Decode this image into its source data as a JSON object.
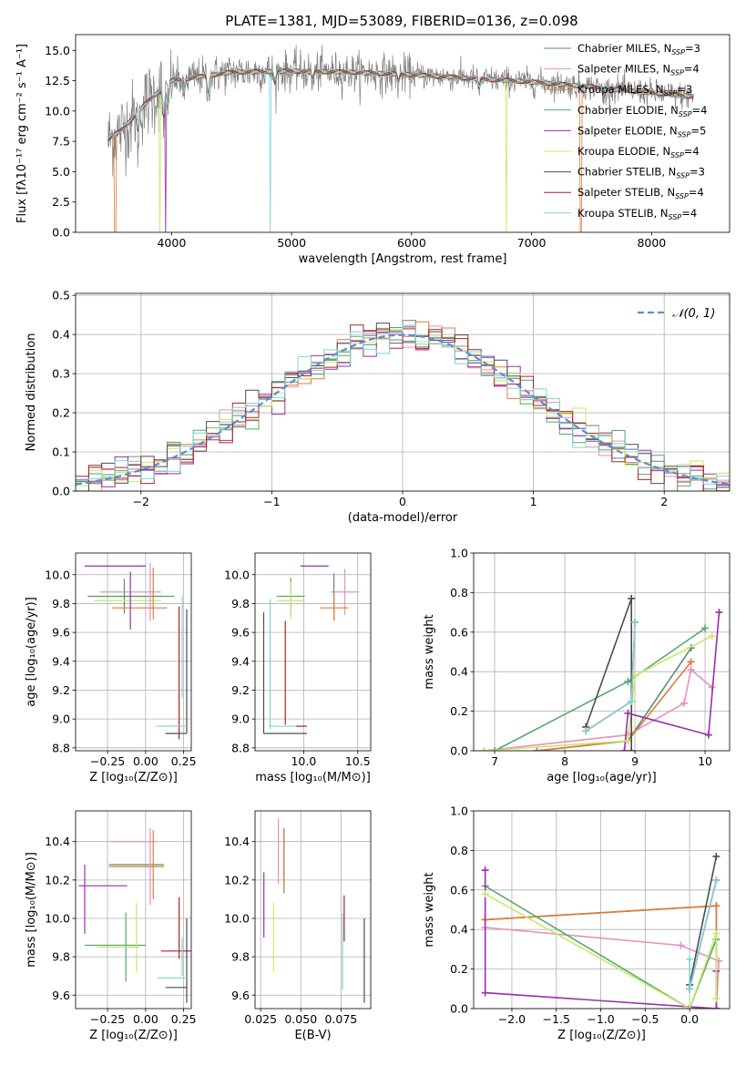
{
  "figure_title": "PLATE=1381, MJD=53089, FIBERID=0136, z=0.098",
  "colors": {
    "Chabrier MILES": "#5b8f6c",
    "Salpeter MILES": "#e88fbf",
    "Kroupa MILES": "#e07b39",
    "Chabrier ELODIE": "#55aa66",
    "Salpeter ELODIE": "#9a2fae",
    "Kroupa ELODIE": "#c8e86a",
    "Chabrier STELIB": "#4d4d4d",
    "Salpeter STELIB": "#b22222",
    "Kroupa STELIB": "#7fd4d8",
    "normal": "#5b8bd6",
    "observed": "#808080"
  },
  "chart_data": [
    {
      "id": "spectrum",
      "type": "line",
      "title": "PLATE=1381, MJD=53089, FIBERID=0136, z=0.098",
      "xlabel": "wavelength [Angstrom, rest frame]",
      "ylabel": "Flux [fλ10⁻¹⁷ erg cm⁻² s⁻¹ A⁻¹]",
      "xlim": [
        3200,
        8650
      ],
      "ylim": [
        0,
        16.3
      ],
      "xticks": [
        4000,
        5000,
        6000,
        7000,
        8000
      ],
      "yticks": [
        0.0,
        2.5,
        5.0,
        7.5,
        10.0,
        12.5,
        15.0
      ],
      "continuum": [
        [
          3470,
          7.6
        ],
        [
          3600,
          8.6
        ],
        [
          3800,
          10.8
        ],
        [
          4000,
          12.5
        ],
        [
          4500,
          13.2
        ],
        [
          5000,
          13.3
        ],
        [
          5500,
          13.2
        ],
        [
          6000,
          13.0
        ],
        [
          6500,
          12.7
        ],
        [
          7000,
          12.4
        ],
        [
          7500,
          12.0
        ],
        [
          8000,
          11.5
        ],
        [
          8350,
          11.2
        ]
      ],
      "features": [
        [
          3720,
          -2.0
        ],
        [
          3934,
          -3.0
        ],
        [
          3968,
          -2.5
        ],
        [
          4101,
          -1.5
        ],
        [
          4304,
          -2.0
        ],
        [
          4861,
          -1.2
        ],
        [
          5175,
          -1.0
        ],
        [
          5890,
          -0.8
        ],
        [
          6563,
          -0.9
        ],
        [
          7600,
          -0.8
        ]
      ],
      "model_dropouts": [
        {
          "series": "Kroupa MILES",
          "x": 3530
        },
        {
          "series": "Kroupa MILES",
          "x": 7410
        },
        {
          "series": "Kroupa ELODIE",
          "x": 3905
        },
        {
          "series": "Kroupa ELODIE",
          "x": 6790
        },
        {
          "series": "Kroupa STELIB",
          "x": 4820
        },
        {
          "series": "Salpeter ELODIE",
          "x": 3950
        }
      ],
      "legend": [
        {
          "series": "Chabrier MILES",
          "label": "Chabrier MILES, N",
          "sub": "SSP",
          "suffix": "=3"
        },
        {
          "series": "Salpeter MILES",
          "label": "Salpeter MILES, N",
          "sub": "SSP",
          "suffix": "=4"
        },
        {
          "series": "Kroupa MILES",
          "label": "Kroupa MILES, N",
          "sub": "SSP",
          "suffix": "=3"
        },
        {
          "series": "Chabrier ELODIE",
          "label": "Chabrier ELODIE, N",
          "sub": "SSP",
          "suffix": "=4"
        },
        {
          "series": "Salpeter ELODIE",
          "label": "Salpeter ELODIE, N",
          "sub": "SSP",
          "suffix": "=5"
        },
        {
          "series": "Kroupa ELODIE",
          "label": "Kroupa ELODIE, N",
          "sub": "SSP",
          "suffix": "=4"
        },
        {
          "series": "Chabrier STELIB",
          "label": "Chabrier STELIB, N",
          "sub": "SSP",
          "suffix": "=3"
        },
        {
          "series": "Salpeter STELIB",
          "label": "Salpeter STELIB, N",
          "sub": "SSP",
          "suffix": "=4"
        },
        {
          "series": "Kroupa STELIB",
          "label": "Kroupa STELIB, N",
          "sub": "SSP",
          "suffix": "=4"
        }
      ],
      "legend_placement": "top-right"
    },
    {
      "id": "residuals",
      "type": "line",
      "xlabel": "(data-model)/error",
      "ylabel": "Normed distribution",
      "xlim": [
        -2.5,
        2.5
      ],
      "ylim": [
        0,
        0.505
      ],
      "xticks": [
        -2,
        -1,
        0,
        1,
        2
      ],
      "xtick_labels": [
        "−2",
        "−1",
        "0",
        "1",
        "2"
      ],
      "yticks": [
        0.0,
        0.1,
        0.2,
        0.3,
        0.4,
        0.5
      ],
      "grid": true,
      "bin_width": 0.1,
      "normal_legend": "𝒩(0, 1)",
      "legend_placement": "top-right"
    },
    {
      "id": "age-vs-Z",
      "type": "scatter",
      "xlabel": "Z [log₁₀(Z/Z⊙)]",
      "ylabel": "age  [log₁₀(age/yr)]",
      "xlim": [
        -0.46,
        0.3
      ],
      "ylim": [
        8.78,
        10.15
      ],
      "xticks": [
        -0.25,
        0.0,
        0.25
      ],
      "xtick_labels": [
        "−0.25",
        "0.00",
        "0.25"
      ],
      "yticks": [
        8.8,
        9.0,
        9.2,
        9.4,
        9.6,
        9.8,
        10.0
      ],
      "grid": true,
      "points": [
        {
          "series": "Salpeter ELODIE",
          "x": -0.2,
          "y": 10.06,
          "xerr": 0.2,
          "yerr": 0.0
        },
        {
          "series": "Salpeter MILES",
          "x": -0.1,
          "y": 9.88,
          "xerr": 0.2,
          "yerr": 0.0
        },
        {
          "series": "Chabrier MILES",
          "x": -0.14,
          "y": 9.85,
          "xerr": 0.24,
          "yerr": 0.12
        },
        {
          "series": "Kroupa ELODIE",
          "x": -0.12,
          "y": 9.82,
          "xerr": 0.22,
          "yerr": 0.0
        },
        {
          "series": "Kroupa MILES",
          "x": -0.04,
          "y": 9.77,
          "xerr": 0.18,
          "yerr": 0.0
        },
        {
          "series": "Chabrier ELODIE",
          "x": -0.05,
          "y": 9.85,
          "xerr": 0.24,
          "yerr": 0.0
        },
        {
          "series": "Salpeter ELODIE",
          "x": -0.1,
          "y": 9.82,
          "xerr": 0.0,
          "yerr": 0.2
        },
        {
          "series": "Salpeter MILES",
          "x": 0.03,
          "y": 9.88,
          "xerr": 0.0,
          "yerr": 0.2
        },
        {
          "series": "Kroupa MILES",
          "x": 0.05,
          "y": 9.87,
          "xerr": 0.0,
          "yerr": 0.18
        },
        {
          "series": "Kroupa STELIB",
          "x": 0.24,
          "y": 9.5,
          "xerr": 0.0,
          "yerr": 0.35
        },
        {
          "series": "Chabrier STELIB",
          "x": 0.27,
          "y": 9.33,
          "xerr": 0.0,
          "yerr": 0.43
        },
        {
          "series": "Salpeter STELIB",
          "x": 0.22,
          "y": 9.32,
          "xerr": 0.0,
          "yerr": 0.46
        },
        {
          "series": "Kroupa STELIB",
          "x": 0.17,
          "y": 8.95,
          "xerr": 0.1,
          "yerr": 0.0
        },
        {
          "series": "Chabrier STELIB",
          "x": 0.2,
          "y": 8.9,
          "xerr": 0.07,
          "yerr": 0.0
        }
      ]
    },
    {
      "id": "age-vs-mass",
      "type": "scatter",
      "xlabel": "mass [log₁₀(M/M⊙)]",
      "ylabel": "",
      "xlim": [
        9.55,
        10.62
      ],
      "ylim": [
        8.78,
        10.15
      ],
      "xticks": [
        10.0,
        10.5
      ],
      "xtick_labels": [
        "10.0",
        "10.5"
      ],
      "yticks": [
        8.8,
        9.0,
        9.2,
        9.4,
        9.6,
        9.8,
        10.0
      ],
      "grid": true,
      "points": [
        {
          "series": "Salpeter ELODIE",
          "x": 10.1,
          "y": 10.06,
          "xerr": 0.13,
          "yerr": 0.0
        },
        {
          "series": "Chabrier ELODIE",
          "x": 9.88,
          "y": 9.85,
          "xerr": 0.13,
          "yerr": 0.13
        },
        {
          "series": "Kroupa ELODIE",
          "x": 9.88,
          "y": 9.82,
          "xerr": 0.13,
          "yerr": 0.13
        },
        {
          "series": "Salpeter MILES",
          "x": 10.38,
          "y": 9.88,
          "xerr": 0.13,
          "yerr": 0.16
        },
        {
          "series": "Chabrier MILES",
          "x": 10.28,
          "y": 9.85,
          "xerr": 0.0,
          "yerr": 0.16
        },
        {
          "series": "Kroupa MILES",
          "x": 10.28,
          "y": 9.77,
          "xerr": 0.13,
          "yerr": 0.09
        },
        {
          "series": "Chabrier STELIB",
          "x": 9.63,
          "y": 9.32,
          "xerr": 0.0,
          "yerr": 0.42
        },
        {
          "series": "Kroupa STELIB",
          "x": 9.69,
          "y": 9.38,
          "xerr": 0.0,
          "yerr": 0.45
        },
        {
          "series": "Salpeter STELIB",
          "x": 9.83,
          "y": 9.32,
          "xerr": 0.0,
          "yerr": 0.36
        },
        {
          "series": "Chabrier STELIB",
          "x": 9.83,
          "y": 8.9,
          "xerr": 0.2,
          "yerr": 0.0
        },
        {
          "series": "Kroupa STELIB",
          "x": 9.85,
          "y": 8.95,
          "xerr": 0.17,
          "yerr": 0.0
        },
        {
          "series": "Salpeter STELIB",
          "x": 9.98,
          "y": 8.95,
          "xerr": 0.05,
          "yerr": 0.0
        }
      ]
    },
    {
      "id": "weight-vs-age",
      "type": "line",
      "xlabel": "age  [log₁₀(age/yr)]",
      "ylabel": "mass weight",
      "xlim": [
        6.7,
        10.35
      ],
      "ylim": [
        0,
        1.0
      ],
      "xticks": [
        7,
        8,
        9,
        10
      ],
      "yticks": [
        0.0,
        0.2,
        0.4,
        0.6,
        0.8,
        1.0
      ],
      "grid": true,
      "series": [
        {
          "name": "Chabrier MILES",
          "x": [
            7.6,
            8.9,
            9.8
          ],
          "y": [
            0.0,
            0.05,
            0.52
          ]
        },
        {
          "name": "Salpeter MILES",
          "x": [
            6.85,
            8.9,
            9.7,
            9.8,
            10.1
          ],
          "y": [
            0.0,
            0.08,
            0.24,
            0.41,
            0.32
          ]
        },
        {
          "name": "Kroupa MILES",
          "x": [
            7.6,
            8.9,
            9.8
          ],
          "y": [
            0.0,
            0.05,
            0.45
          ]
        },
        {
          "name": "Chabrier ELODIE",
          "x": [
            7.0,
            8.9,
            10.0
          ],
          "y": [
            0.0,
            0.35,
            0.62
          ]
        },
        {
          "name": "Salpeter ELODIE",
          "x": [
            10.2,
            10.05,
            8.9,
            8.85
          ],
          "y": [
            0.7,
            0.08,
            0.19,
            0.0
          ]
        },
        {
          "name": "Kroupa ELODIE",
          "x": [
            6.85,
            8.9,
            9.0,
            10.1
          ],
          "y": [
            0.0,
            0.05,
            0.38,
            0.58
          ]
        },
        {
          "name": "Chabrier STELIB",
          "x": [
            8.3,
            8.95,
            8.95
          ],
          "y": [
            0.12,
            0.77,
            0.0
          ]
        },
        {
          "name": "Salpeter STELIB",
          "x": [
            8.3,
            8.95,
            9.0
          ],
          "y": [
            0.1,
            0.25,
            0.65
          ]
        },
        {
          "name": "Kroupa STELIB",
          "x": [
            8.3,
            8.95,
            9.0
          ],
          "y": [
            0.1,
            0.25,
            0.65
          ]
        }
      ]
    },
    {
      "id": "mass-vs-Z",
      "type": "scatter",
      "xlabel": "Z [log₁₀(Z/Z⊙)]",
      "ylabel": "mass [log₁₀(M/M⊙)]",
      "xlim": [
        -0.46,
        0.3
      ],
      "ylim": [
        9.53,
        10.56
      ],
      "xticks": [
        -0.25,
        0.0,
        0.25
      ],
      "xtick_labels": [
        "−0.25",
        "0.00",
        "0.25"
      ],
      "yticks": [
        9.6,
        9.8,
        10.0,
        10.2,
        10.4
      ],
      "grid": true,
      "points": [
        {
          "series": "Salpeter MILES",
          "x": -0.08,
          "y": 10.4,
          "xerr": 0.15,
          "yerr": 0.0
        },
        {
          "series": "Chabrier MILES",
          "x": -0.06,
          "y": 10.28,
          "xerr": 0.18,
          "yerr": 0.0
        },
        {
          "series": "Kroupa MILES",
          "x": -0.06,
          "y": 10.27,
          "xerr": 0.18,
          "yerr": 0.0
        },
        {
          "series": "Salpeter ELODIE",
          "x": -0.28,
          "y": 10.17,
          "xerr": 0.16,
          "yerr": 0.0
        },
        {
          "series": "Salpeter ELODIE",
          "x": -0.4,
          "y": 10.1,
          "xerr": 0.0,
          "yerr": 0.18
        },
        {
          "series": "Salpeter MILES",
          "x": 0.03,
          "y": 10.27,
          "xerr": 0.0,
          "yerr": 0.2
        },
        {
          "series": "Kroupa MILES",
          "x": 0.05,
          "y": 10.28,
          "xerr": 0.0,
          "yerr": 0.18
        },
        {
          "series": "Chabrier ELODIE",
          "x": -0.2,
          "y": 9.86,
          "xerr": 0.2,
          "yerr": 0.0
        },
        {
          "series": "Chabrier ELODIE",
          "x": -0.13,
          "y": 9.85,
          "xerr": 0.0,
          "yerr": 0.18
        },
        {
          "series": "Kroupa ELODIE",
          "x": -0.18,
          "y": 9.85,
          "xerr": 0.14,
          "yerr": 0.0
        },
        {
          "series": "Kroupa ELODIE",
          "x": -0.06,
          "y": 9.9,
          "xerr": 0.0,
          "yerr": 0.18
        },
        {
          "series": "Salpeter STELIB",
          "x": 0.2,
          "y": 9.83,
          "xerr": 0.1,
          "yerr": 0.0
        },
        {
          "series": "Salpeter STELIB",
          "x": 0.22,
          "y": 9.95,
          "xerr": 0.0,
          "yerr": 0.16
        },
        {
          "series": "Kroupa STELIB",
          "x": 0.17,
          "y": 9.69,
          "xerr": 0.09,
          "yerr": 0.0
        },
        {
          "series": "Kroupa STELIB",
          "x": 0.24,
          "y": 9.8,
          "xerr": 0.0,
          "yerr": 0.1
        },
        {
          "series": "Chabrier STELIB",
          "x": 0.2,
          "y": 9.64,
          "xerr": 0.07,
          "yerr": 0.0
        },
        {
          "series": "Chabrier STELIB",
          "x": 0.27,
          "y": 9.78,
          "xerr": 0.0,
          "yerr": 0.22
        }
      ]
    },
    {
      "id": "mass-vs-ebv",
      "type": "scatter",
      "xlabel": "E(B-V)",
      "ylabel": "",
      "xlim": [
        0.0215,
        0.0935
      ],
      "ylim": [
        9.53,
        10.56
      ],
      "xticks": [
        0.025,
        0.05,
        0.075
      ],
      "xtick_labels": [
        "0.025",
        "0.050",
        "0.075"
      ],
      "yticks": [
        9.6,
        9.8,
        10.0,
        10.2,
        10.4
      ],
      "grid": true,
      "points": [
        {
          "series": "Salpeter ELODIE",
          "x": 0.027,
          "y": 10.07,
          "xerr": 0.0,
          "yerr": 0.17
        },
        {
          "series": "Kroupa ELODIE",
          "x": 0.033,
          "y": 9.9,
          "xerr": 0.0,
          "yerr": 0.18
        },
        {
          "series": "Salpeter MILES",
          "x": 0.036,
          "y": 10.35,
          "xerr": 0.0,
          "yerr": 0.17
        },
        {
          "series": "Chabrier MILES",
          "x": 0.0395,
          "y": 10.3,
          "xerr": 0.0,
          "yerr": 0.17
        },
        {
          "series": "Kroupa MILES",
          "x": 0.0395,
          "y": 10.3,
          "xerr": 0.0,
          "yerr": 0.15
        },
        {
          "series": "Salpeter STELIB",
          "x": 0.077,
          "y": 10.0,
          "xerr": 0.0,
          "yerr": 0.12
        },
        {
          "series": "Kroupa STELIB",
          "x": 0.076,
          "y": 9.83,
          "xerr": 0.0,
          "yerr": 0.2
        },
        {
          "series": "Chabrier STELIB",
          "x": 0.0895,
          "y": 9.78,
          "xerr": 0.0,
          "yerr": 0.22
        }
      ]
    },
    {
      "id": "weight-vs-Z",
      "type": "line",
      "xlabel": "Z [log₁₀(Z/Z⊙)]",
      "ylabel": "mass weight",
      "xlim": [
        -2.43,
        0.45
      ],
      "ylim": [
        0,
        1.0
      ],
      "xticks": [
        -2.0,
        -1.5,
        -1.0,
        -0.5,
        0.0
      ],
      "xtick_labels": [
        "−2.0",
        "−1.5",
        "−1.0",
        "−0.5",
        "0.0"
      ],
      "yticks": [
        0.0,
        0.2,
        0.4,
        0.6,
        0.8,
        1.0
      ],
      "grid": true,
      "series": [
        {
          "name": "Chabrier MILES",
          "x": [
            -2.3,
            0.3,
            0.3,
            0.0
          ],
          "y": [
            0.45,
            0.52,
            0.0,
            0.0
          ]
        },
        {
          "name": "Salpeter MILES",
          "x": [
            -2.3,
            -0.1,
            0.33,
            0.3
          ],
          "y": [
            0.41,
            0.32,
            0.24,
            0.0
          ]
        },
        {
          "name": "Kroupa MILES",
          "x": [
            -2.3,
            0.3,
            0.3,
            0.0
          ],
          "y": [
            0.45,
            0.52,
            0.0,
            0.0
          ]
        },
        {
          "name": "Chabrier ELODIE",
          "x": [
            -2.3,
            0.0,
            0.3
          ],
          "y": [
            0.62,
            0.0,
            0.35
          ]
        },
        {
          "name": "Salpeter ELODIE",
          "x": [
            -2.3,
            -2.3,
            0.3,
            0.3
          ],
          "y": [
            0.7,
            0.08,
            0.0,
            0.19
          ]
        },
        {
          "name": "Kroupa ELODIE",
          "x": [
            -2.3,
            0.0,
            0.3,
            0.3
          ],
          "y": [
            0.58,
            0.0,
            0.38,
            0.05
          ]
        },
        {
          "name": "Chabrier STELIB",
          "x": [
            0.0,
            0.3
          ],
          "y": [
            0.12,
            0.77
          ]
        },
        {
          "name": "Salpeter STELIB",
          "x": [
            0.0,
            0.3
          ],
          "y": [
            0.1,
            0.65
          ]
        },
        {
          "name": "Kroupa STELIB",
          "x": [
            0.0,
            0.0,
            0.3
          ],
          "y": [
            0.25,
            0.1,
            0.65
          ]
        }
      ]
    }
  ]
}
